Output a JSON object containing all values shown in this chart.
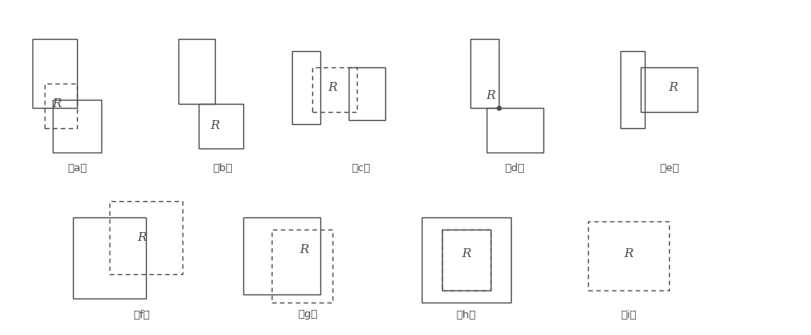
{
  "fig_width": 10.0,
  "fig_height": 4.13,
  "bg_color": "#ffffff",
  "line_color": "#4a4a4a",
  "text_color": "#4a4a4a",
  "label_fontsize": 9.5,
  "r_fontsize": 11,
  "lw": 1.0,
  "subfig_labels": [
    "（a）",
    "（b）",
    "（c）",
    "（d）",
    "（e）",
    "（f）",
    "（g）",
    "（h）",
    "（i）"
  ]
}
